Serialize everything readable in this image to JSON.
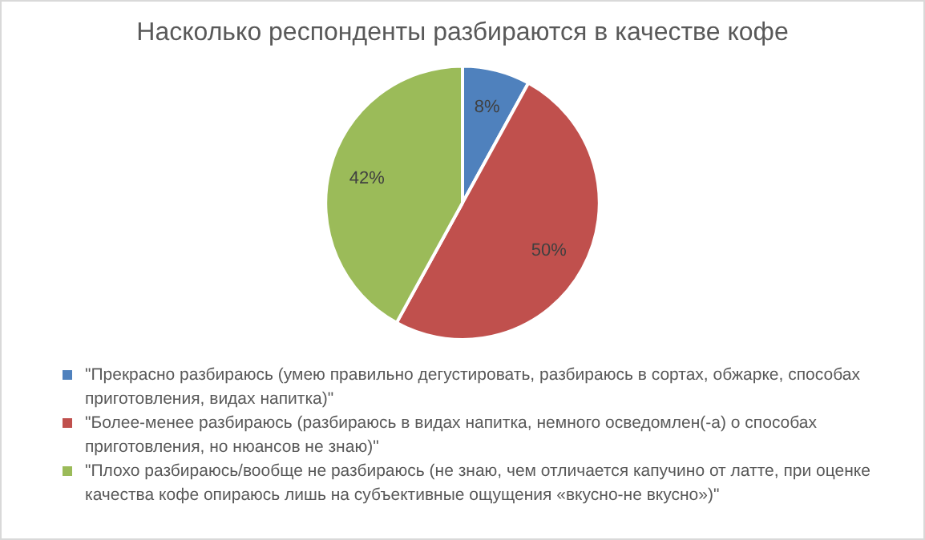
{
  "chart_data": {
    "type": "pie",
    "title": "Насколько респонденты разбираются в качестве кофе",
    "categories": [
      "\"Прекрасно разбираюсь (умею правильно дегустировать, разбираюсь в сортах, обжарке, способах приготовления, видах напитка)\"",
      "\"Более-менее разбираюсь (разбираюсь в видах напитка, немного осведомлен(-а) о способах приготовления, но нюансов не знаю)\"",
      "\"Плохо разбираюсь/вообще не разбираюсь (не знаю, чем отличается капучино от латте, при оценке качества кофе опираюсь лишь на субъективные ощущения «вкусно-не вкусно»)\""
    ],
    "values": [
      8,
      50,
      42
    ],
    "colors": [
      "#4f81bd",
      "#c0504d",
      "#9bbb59"
    ],
    "value_labels": [
      "8%",
      "50%",
      "42%"
    ],
    "legend": "bottom"
  }
}
